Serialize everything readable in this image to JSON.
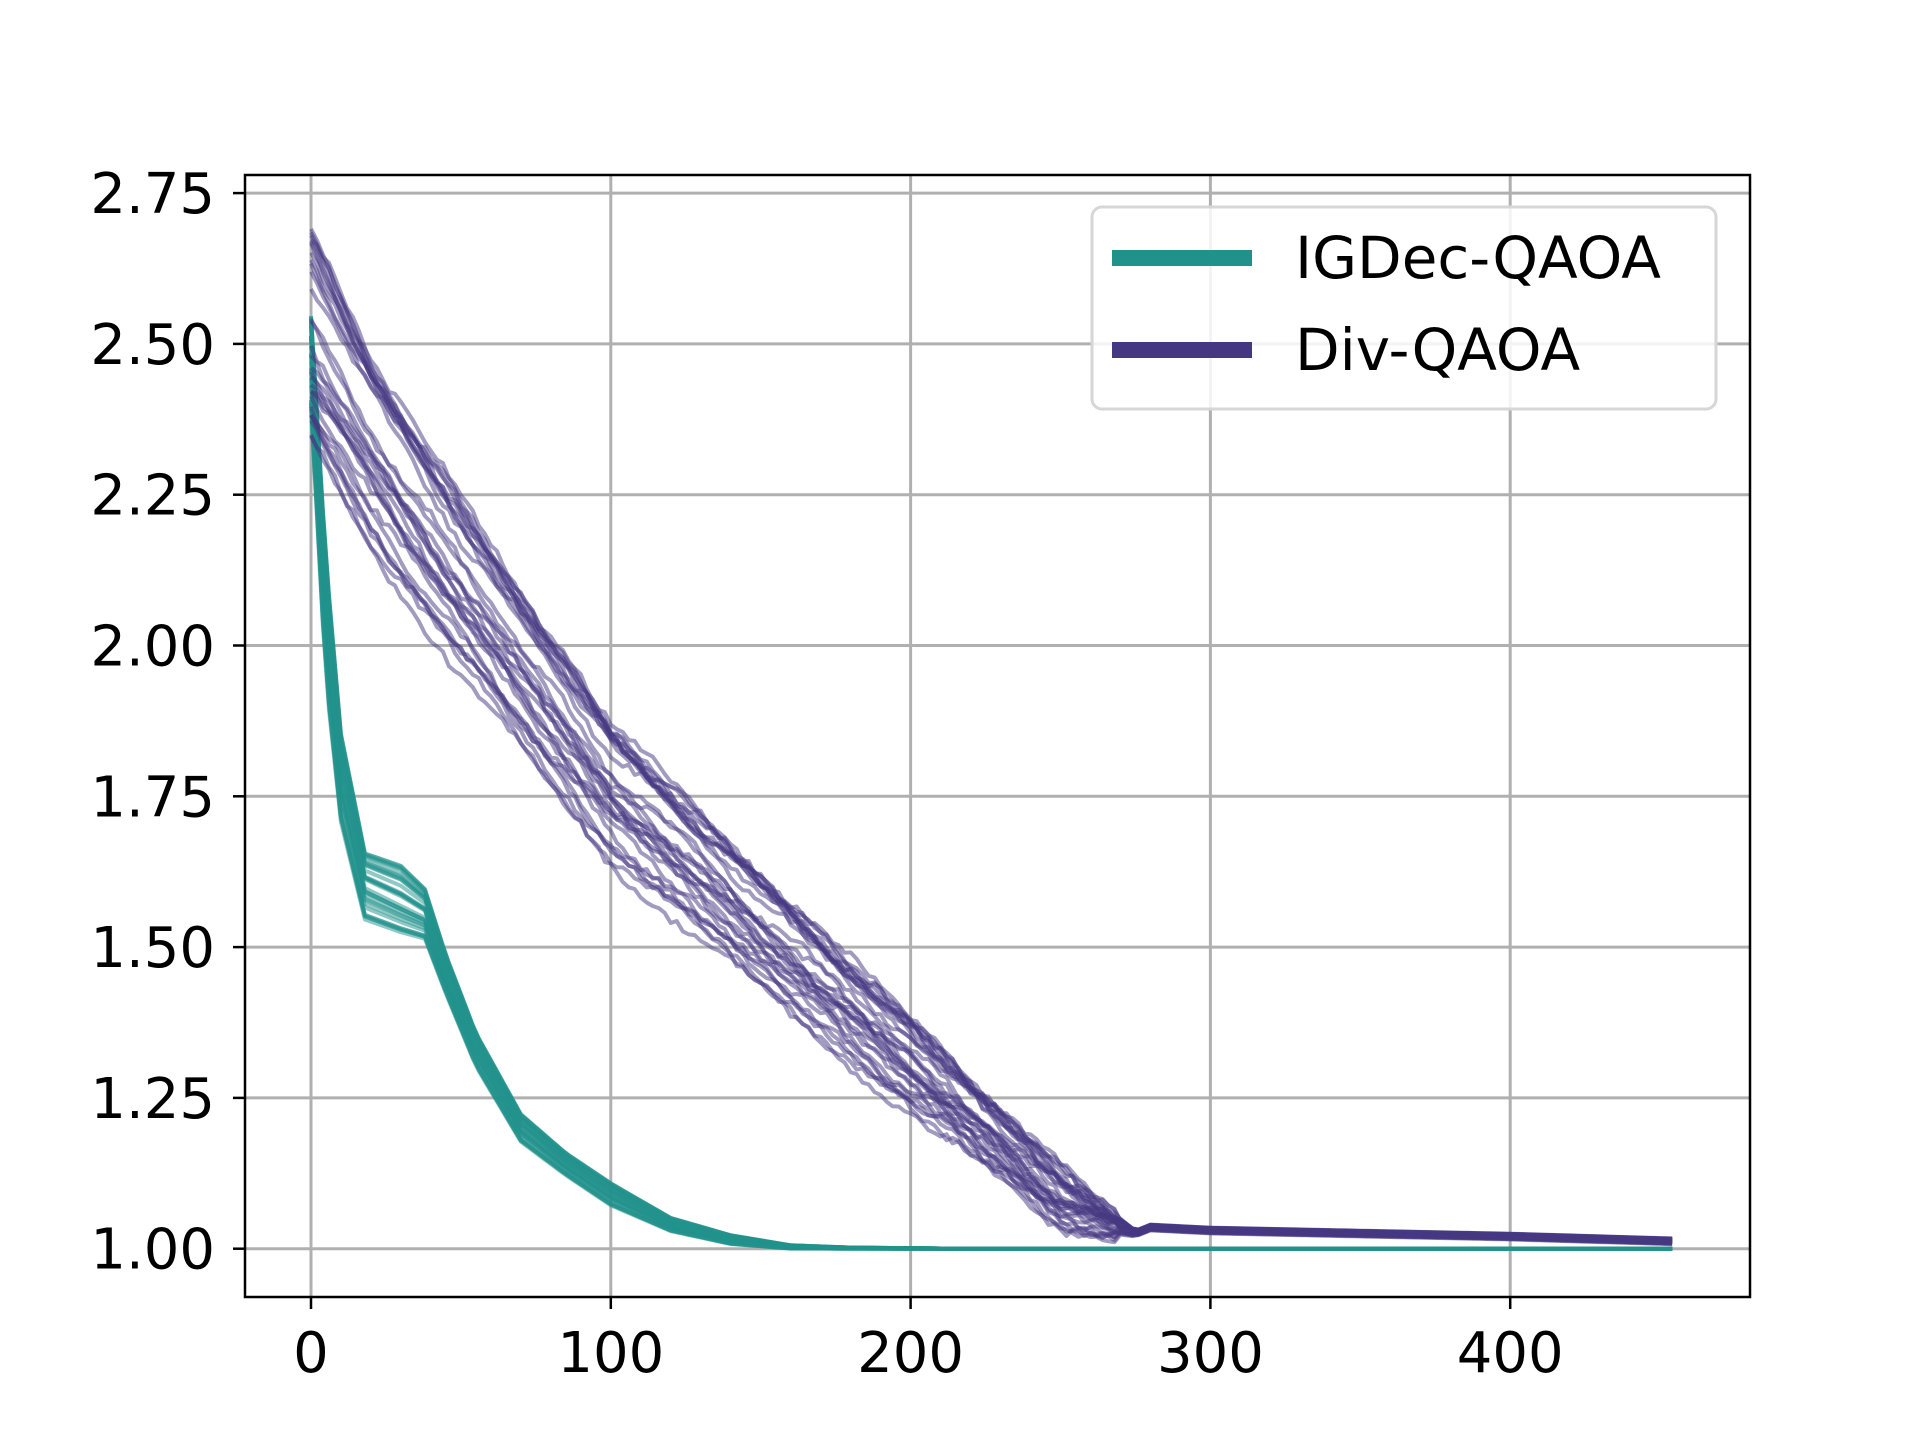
{
  "chart_data": {
    "type": "line",
    "title": "",
    "xlabel": "",
    "ylabel": "",
    "xlim": [
      -22,
      480
    ],
    "ylim": [
      0.92,
      2.78
    ],
    "grid": true,
    "legend_position": "top-right",
    "x_ticks": [
      0,
      100,
      200,
      300,
      400
    ],
    "x_tick_labels": [
      "0",
      "100",
      "200",
      "300",
      "400"
    ],
    "y_ticks": [
      1.0,
      1.25,
      1.5,
      1.75,
      2.0,
      2.25,
      2.5,
      2.75
    ],
    "y_tick_labels": [
      "1.00",
      "1.25",
      "1.50",
      "1.75",
      "2.00",
      "2.25",
      "2.50",
      "2.75"
    ],
    "series": [
      {
        "name": "IGDec-QAOA",
        "color": "#21918c",
        "runs_shown": 30,
        "x": [
          0,
          5,
          10,
          18,
          30,
          38,
          45,
          55,
          70,
          85,
          100,
          120,
          140,
          160,
          180,
          220,
          300,
          400,
          455
        ],
        "values": [
          2.5,
          2.05,
          1.78,
          1.6,
          1.57,
          1.55,
          1.45,
          1.33,
          1.2,
          1.14,
          1.09,
          1.04,
          1.015,
          1.003,
          1.001,
          1.0,
          1.0,
          1.0,
          1.0
        ],
        "spread_low": [
          0.12,
          0.12,
          0.08,
          0.06,
          0.05,
          0.04,
          0.03,
          0.03,
          0.025,
          0.02,
          0.02,
          0.012,
          0.008,
          0.003,
          0.001,
          0,
          0,
          0,
          0
        ],
        "spread_high": [
          0.05,
          0.1,
          0.08,
          0.06,
          0.07,
          0.05,
          0.04,
          0.03,
          0.025,
          0.02,
          0.02,
          0.012,
          0.008,
          0.003,
          0.001,
          0,
          0,
          0,
          0
        ]
      },
      {
        "name": "Div-QAOA",
        "color": "#453781",
        "runs_shown": 30,
        "x": [
          0,
          20,
          50,
          100,
          150,
          200,
          250,
          275,
          280,
          300,
          350,
          400,
          455
        ],
        "values": [
          2.45,
          2.3,
          2.08,
          1.75,
          1.52,
          1.3,
          1.08,
          1.025,
          1.035,
          1.03,
          1.025,
          1.02,
          1.012
        ],
        "spread_low": [
          0.12,
          0.15,
          0.14,
          0.12,
          0.1,
          0.08,
          0.05,
          0.005,
          0.005,
          0.005,
          0.005,
          0.005,
          0.005
        ],
        "spread_high": [
          0.25,
          0.18,
          0.16,
          0.12,
          0.1,
          0.08,
          0.05,
          0.005,
          0.005,
          0.005,
          0.005,
          0.005,
          0.005
        ]
      }
    ]
  }
}
